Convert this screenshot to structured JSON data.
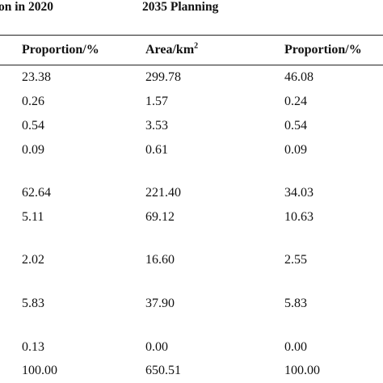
{
  "table": {
    "group_headers": {
      "current": "on in 2020",
      "planning": "2035 Planning"
    },
    "columns": {
      "proportion_2020": "Proportion/%",
      "area_2035_text": "Area/km",
      "area_2035_sup": "2",
      "proportion_2035": "Proportion/%"
    },
    "rows": [
      {
        "p2020": "23.38",
        "a2035": "299.78",
        "p2035": "46.08"
      },
      {
        "p2020": "0.26",
        "a2035": "1.57",
        "p2035": "0.24"
      },
      {
        "p2020": "0.54",
        "a2035": "3.53",
        "p2035": "0.54"
      },
      {
        "p2020": "0.09",
        "a2035": "0.61",
        "p2035": "0.09"
      },
      {
        "p2020": "62.64",
        "a2035": "221.40",
        "p2035": "34.03"
      },
      {
        "p2020": "5.11",
        "a2035": "69.12",
        "p2035": "10.63"
      },
      {
        "p2020": "2.02",
        "a2035": "16.60",
        "p2035": "2.55"
      },
      {
        "p2020": "5.83",
        "a2035": "37.90",
        "p2035": "5.83"
      },
      {
        "p2020": "0.13",
        "a2035": "0.00",
        "p2035": "0.00"
      },
      {
        "p2020": "100.00",
        "a2035": "650.51",
        "p2035": "100.00"
      }
    ]
  }
}
